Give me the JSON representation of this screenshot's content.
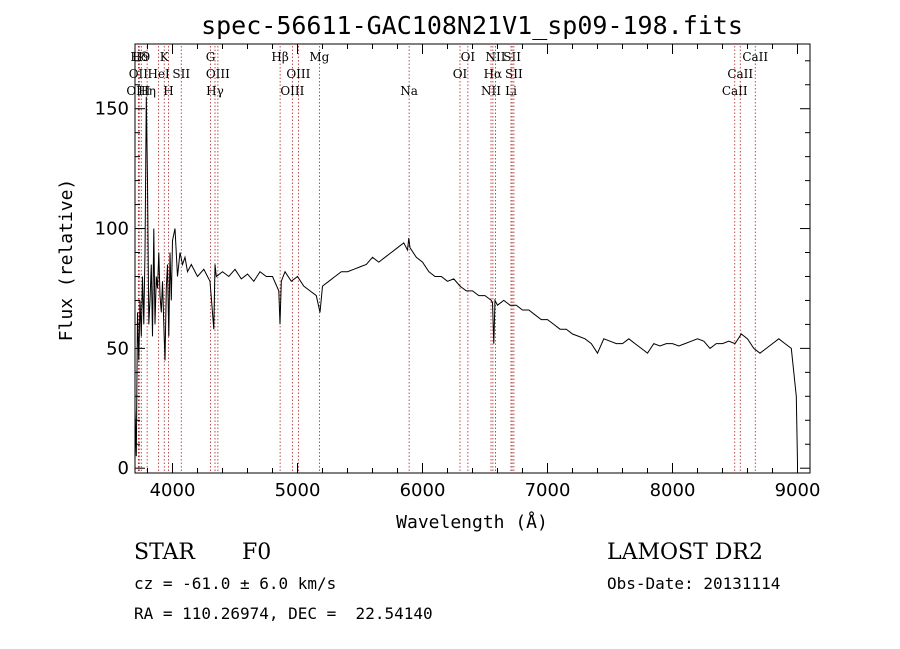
{
  "chart_data": {
    "type": "line",
    "title": "spec-56611-GAC108N21V1_sp09-198.fits",
    "xlabel": "Wavelength (Å)",
    "ylabel": "Flux (relative)",
    "xlim": [
      3700,
      9100
    ],
    "ylim": [
      -2,
      177
    ],
    "xticks": [
      4000,
      5000,
      6000,
      7000,
      8000,
      9000
    ],
    "yticks": [
      0,
      50,
      100,
      150
    ],
    "grid": false,
    "legend": "none",
    "line_color": "#000000",
    "marker_color": "#aa2222",
    "spectrum": {
      "x": [
        3700,
        3710,
        3720,
        3730,
        3740,
        3750,
        3760,
        3770,
        3780,
        3790,
        3800,
        3810,
        3820,
        3830,
        3840,
        3850,
        3860,
        3870,
        3880,
        3890,
        3900,
        3910,
        3920,
        3930,
        3940,
        3950,
        3960,
        3970,
        3980,
        3990,
        4000,
        4020,
        4040,
        4060,
        4080,
        4100,
        4120,
        4150,
        4200,
        4250,
        4300,
        4330,
        4340,
        4350,
        4400,
        4450,
        4500,
        4550,
        4600,
        4650,
        4700,
        4750,
        4800,
        4850,
        4860,
        4870,
        4900,
        4950,
        5000,
        5050,
        5100,
        5150,
        5180,
        5200,
        5250,
        5300,
        5350,
        5400,
        5450,
        5500,
        5550,
        5600,
        5650,
        5700,
        5750,
        5800,
        5850,
        5880,
        5890,
        5900,
        5950,
        6000,
        6050,
        6100,
        6150,
        6200,
        6250,
        6300,
        6350,
        6400,
        6450,
        6500,
        6550,
        6560,
        6570,
        6580,
        6600,
        6650,
        6700,
        6750,
        6800,
        6850,
        6900,
        6950,
        7000,
        7050,
        7100,
        7150,
        7200,
        7250,
        7300,
        7350,
        7400,
        7450,
        7500,
        7550,
        7600,
        7650,
        7700,
        7750,
        7800,
        7850,
        7900,
        7950,
        8000,
        8050,
        8100,
        8150,
        8200,
        8250,
        8300,
        8350,
        8400,
        8450,
        8500,
        8550,
        8600,
        8650,
        8700,
        8750,
        8800,
        8850,
        8900,
        8950,
        8990,
        9000
      ],
      "y": [
        25,
        5,
        65,
        45,
        70,
        55,
        80,
        60,
        90,
        155,
        120,
        60,
        70,
        85,
        55,
        100,
        60,
        80,
        75,
        90,
        72,
        65,
        78,
        60,
        45,
        75,
        85,
        55,
        90,
        70,
        95,
        100,
        80,
        90,
        85,
        88,
        82,
        85,
        80,
        83,
        78,
        58,
        85,
        80,
        82,
        80,
        83,
        79,
        81,
        78,
        82,
        80,
        80,
        74,
        60,
        78,
        82,
        78,
        80,
        76,
        74,
        72,
        65,
        76,
        78,
        80,
        82,
        82,
        83,
        84,
        85,
        88,
        86,
        88,
        90,
        92,
        94,
        91,
        96,
        92,
        88,
        86,
        82,
        80,
        80,
        78,
        79,
        76,
        74,
        74,
        72,
        72,
        70,
        69,
        52,
        70,
        68,
        70,
        68,
        68,
        66,
        66,
        64,
        62,
        62,
        60,
        58,
        58,
        56,
        55,
        54,
        52,
        48,
        54,
        53,
        52,
        52,
        54,
        52,
        50,
        48,
        52,
        51,
        52,
        52,
        51,
        52,
        53,
        54,
        53,
        50,
        52,
        52,
        53,
        52,
        56,
        54,
        50,
        48,
        50,
        52,
        54,
        52,
        50,
        30,
        2
      ]
    },
    "markers": [
      {
        "label": "Hδ",
        "x": 3734,
        "row": 0
      },
      {
        "label": "OII",
        "x": 3727,
        "row": 1
      },
      {
        "label": "OIII",
        "x": 3727,
        "row": 2
      },
      {
        "label": "Hη",
        "x": 3797,
        "row": 2
      },
      {
        "label": "H9",
        "x": 3750,
        "row": 0
      },
      {
        "label": "K",
        "x": 3934,
        "row": 0
      },
      {
        "label": "HeI",
        "x": 3889,
        "row": 1
      },
      {
        "label": "H",
        "x": 3968,
        "row": 2
      },
      {
        "label": "SII",
        "x": 4070,
        "row": 1
      },
      {
        "label": "G",
        "x": 4304,
        "row": 0
      },
      {
        "label": "OIII",
        "x": 4363,
        "row": 1
      },
      {
        "label": "Hγ",
        "x": 4340,
        "row": 2
      },
      {
        "label": "Hβ",
        "x": 4861,
        "row": 0
      },
      {
        "label": "OIII",
        "x": 4959,
        "row": 2
      },
      {
        "label": "OIII",
        "x": 5007,
        "row": 1
      },
      {
        "label": "Mg",
        "x": 5175,
        "row": 0
      },
      {
        "label": "Na",
        "x": 5893,
        "row": 2
      },
      {
        "label": "OI",
        "x": 6300,
        "row": 1
      },
      {
        "label": "OI",
        "x": 6363,
        "row": 0
      },
      {
        "label": "NII",
        "x": 6548,
        "row": 2
      },
      {
        "label": "NII",
        "x": 6584,
        "row": 0
      },
      {
        "label": "Hα",
        "x": 6563,
        "row": 1
      },
      {
        "label": "SII",
        "x": 6717,
        "row": 0
      },
      {
        "label": "SII",
        "x": 6731,
        "row": 1
      },
      {
        "label": "Li",
        "x": 6708,
        "row": 2
      },
      {
        "label": "CaII",
        "x": 8498,
        "row": 2
      },
      {
        "label": "CaII",
        "x": 8542,
        "row": 1
      },
      {
        "label": "CaII",
        "x": 8662,
        "row": 0
      }
    ]
  },
  "info": {
    "class": "STAR",
    "subclass": "F0",
    "survey": "LAMOST DR2",
    "cz": "cz = -61.0 ± 6.0 km/s",
    "obs_date": "Obs-Date: 20131114",
    "coords": "RA = 110.26974, DEC =  22.54140"
  }
}
